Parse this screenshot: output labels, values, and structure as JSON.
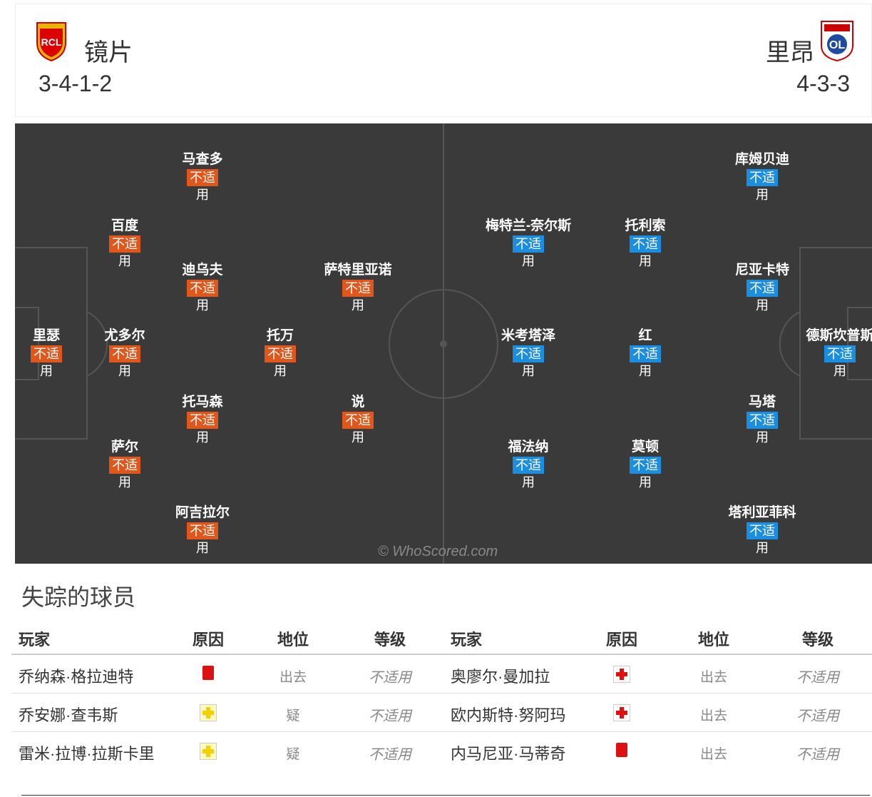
{
  "header": {
    "home": {
      "name": "镜片",
      "formation": "3-4-1-2"
    },
    "away": {
      "name": "里昂",
      "formation": "4-3-3"
    }
  },
  "pitch": {
    "watermark": "© WhoScored.com",
    "home": [
      {
        "name": "马查多",
        "rating": "不适用"
      },
      {
        "name": "百度",
        "rating": "不适用"
      },
      {
        "name": "迪乌夫",
        "rating": "不适用"
      },
      {
        "name": "萨特里亚诺",
        "rating": "不适用"
      },
      {
        "name": "里瑟",
        "rating": "不适用"
      },
      {
        "name": "尤多尔",
        "rating": "不适用"
      },
      {
        "name": "托万",
        "rating": "不适用"
      },
      {
        "name": "托马森",
        "rating": "不适用"
      },
      {
        "name": "说",
        "rating": "不适用"
      },
      {
        "name": "萨尔",
        "rating": "不适用"
      },
      {
        "name": "阿吉拉尔",
        "rating": "不适用"
      }
    ],
    "away": [
      {
        "name": "库姆贝迪",
        "rating": "不适用"
      },
      {
        "name": "梅特兰-奈尔斯",
        "rating": "不适用"
      },
      {
        "name": "托利索",
        "rating": "不适用"
      },
      {
        "name": "尼亚卡特",
        "rating": "不适用"
      },
      {
        "name": "米考塔泽",
        "rating": "不适用"
      },
      {
        "name": "红",
        "rating": "不适用"
      },
      {
        "name": "德斯坎普斯",
        "rating": "不适用"
      },
      {
        "name": "马塔",
        "rating": "不适用"
      },
      {
        "name": "福法纳",
        "rating": "不适用"
      },
      {
        "name": "莫顿",
        "rating": "不适用"
      },
      {
        "name": "塔利亚菲科",
        "rating": "不适用"
      }
    ]
  },
  "missing": {
    "title": "失踪的球员",
    "home": {
      "headers": [
        "玩家",
        "原因",
        "地位",
        "等级"
      ],
      "rows": [
        {
          "player": "乔纳森·格拉迪特",
          "status": "出去",
          "rating": "不适用"
        },
        {
          "player": "乔安娜·查韦斯",
          "status": "疑",
          "rating": "不适用"
        },
        {
          "player": "雷米·拉博·拉斯卡里",
          "status": "疑",
          "rating": "不适用"
        }
      ]
    },
    "away": {
      "headers": [
        "玩家",
        "原因",
        "地位",
        "等级"
      ],
      "rows": [
        {
          "player": "奥廖尔·曼加拉",
          "status": "出去",
          "rating": "不适用"
        },
        {
          "player": "欧内斯特·努阿玛",
          "status": "出去",
          "rating": "不适用"
        },
        {
          "player": "内马尼亚·马蒂奇",
          "status": "出去",
          "rating": "不适用"
        }
      ]
    }
  }
}
